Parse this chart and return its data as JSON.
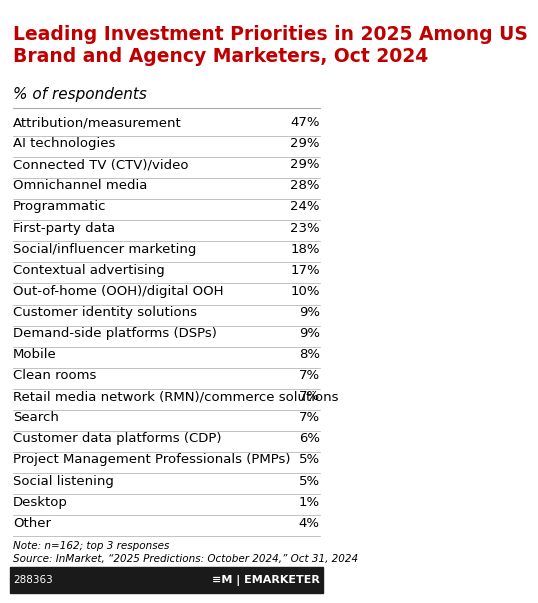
{
  "title": "Leading Investment Priorities in 2025 Among US\nBrand and Agency Marketers, Oct 2024",
  "subtitle": "% of respondents",
  "categories": [
    "Attribution/measurement",
    "AI technologies",
    "Connected TV (CTV)/video",
    "Omnichannel media",
    "Programmatic",
    "First-party data",
    "Social/influencer marketing",
    "Contextual advertising",
    "Out-of-home (OOH)/digital OOH",
    "Customer identity solutions",
    "Demand-side platforms (DSPs)",
    "Mobile",
    "Clean rooms",
    "Retail media network (RMN)/commerce solutions",
    "Search",
    "Customer data platforms (CDP)",
    "Project Management Professionals (PMPs)",
    "Social listening",
    "Desktop",
    "Other"
  ],
  "values": [
    47,
    29,
    29,
    28,
    24,
    23,
    18,
    17,
    10,
    9,
    9,
    8,
    7,
    7,
    7,
    6,
    5,
    5,
    1,
    4
  ],
  "note": "Note: n=162; top 3 responses\nSource: InMarket, “2025 Predictions: October 2024,” Oct 31, 2024",
  "footer_id": "288363",
  "title_color": "#c00000",
  "title_fontsize": 13.5,
  "subtitle_fontsize": 11,
  "row_fontsize": 9.5,
  "note_fontsize": 7.5,
  "bg_color": "#ffffff",
  "text_color": "#000000",
  "line_color": "#aaaaaa",
  "value_color": "#000000",
  "footer_bg": "#1a1a1a",
  "footer_text": "#ffffff"
}
